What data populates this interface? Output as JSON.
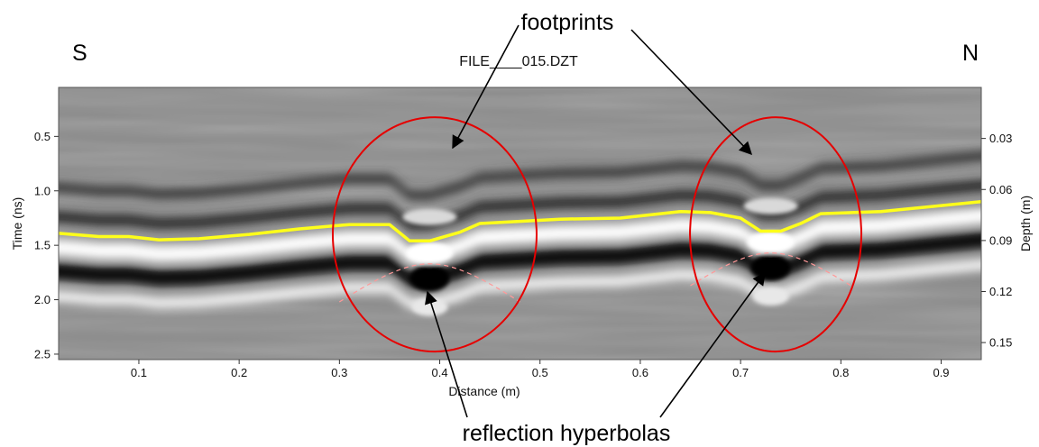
{
  "labels": {
    "south": "S",
    "north": "N",
    "file_name": "FILE____015.DZT",
    "annotation_top": "footprints",
    "annotation_bottom": "reflection hyperbolas"
  },
  "axes": {
    "x_title": "Distance (m)",
    "y_left_title": "Time (ns)",
    "y_right_title": "Depth (m)",
    "x_ticks": [
      "0.1",
      "0.2",
      "0.3",
      "0.4",
      "0.5",
      "0.6",
      "0.7",
      "0.8",
      "0.9"
    ],
    "y_left_ticks": [
      "0.5",
      "1.0",
      "1.5",
      "2.0",
      "2.5"
    ],
    "y_right_ticks": [
      "0.03",
      "0.06",
      "0.09",
      "0.12",
      "0.15"
    ]
  },
  "chart_data": {
    "type": "line",
    "x_range": [
      0.02,
      0.94
    ],
    "time_range": [
      0.05,
      2.55
    ],
    "depth_range": [
      0.0,
      0.16
    ],
    "x_tick_values": [
      0.1,
      0.2,
      0.3,
      0.4,
      0.5,
      0.6,
      0.7,
      0.8,
      0.9
    ],
    "y_left_tick_values": [
      0.5,
      1.0,
      1.5,
      2.0,
      2.5
    ],
    "y_right_tick_values": [
      0.03,
      0.06,
      0.09,
      0.12,
      0.15
    ],
    "surface_line": {
      "color": "#ffff1a",
      "points": [
        [
          0.02,
          1.39
        ],
        [
          0.06,
          1.42
        ],
        [
          0.09,
          1.42
        ],
        [
          0.12,
          1.45
        ],
        [
          0.16,
          1.44
        ],
        [
          0.21,
          1.4
        ],
        [
          0.26,
          1.35
        ],
        [
          0.31,
          1.31
        ],
        [
          0.35,
          1.31
        ],
        [
          0.37,
          1.46
        ],
        [
          0.39,
          1.46
        ],
        [
          0.42,
          1.38
        ],
        [
          0.44,
          1.3
        ],
        [
          0.52,
          1.26
        ],
        [
          0.58,
          1.25
        ],
        [
          0.64,
          1.19
        ],
        [
          0.67,
          1.2
        ],
        [
          0.7,
          1.25
        ],
        [
          0.72,
          1.37
        ],
        [
          0.74,
          1.37
        ],
        [
          0.76,
          1.3
        ],
        [
          0.78,
          1.21
        ],
        [
          0.84,
          1.19
        ],
        [
          0.94,
          1.1
        ]
      ]
    },
    "hyperbolas": [
      {
        "apex_x": 0.39,
        "apex_t": 1.67,
        "half_width": 0.09,
        "drop": 0.35
      },
      {
        "apex_x": 0.73,
        "apex_t": 1.57,
        "half_width": 0.08,
        "drop": 0.3
      }
    ],
    "ellipses": [
      {
        "center_x": 0.395,
        "center_t": 1.4,
        "color": "#e60000"
      },
      {
        "center_x": 0.735,
        "center_t": 1.4,
        "color": "#e60000"
      }
    ],
    "reflector_bands": [
      {
        "color": "#ffffff",
        "offset_ns": 0.13,
        "width_ns": 0.14
      },
      {
        "color": "#111111",
        "offset_ns": 0.35,
        "width_ns": 0.16
      },
      {
        "color": "#2a2a2a",
        "offset_ns": -0.15,
        "width_ns": 0.1
      },
      {
        "color": "#f2f2f2",
        "offset_ns": 0.58,
        "width_ns": 0.1
      },
      {
        "color": "#3a3a3a",
        "offset_ns": -0.42,
        "width_ns": 0.09
      }
    ]
  }
}
